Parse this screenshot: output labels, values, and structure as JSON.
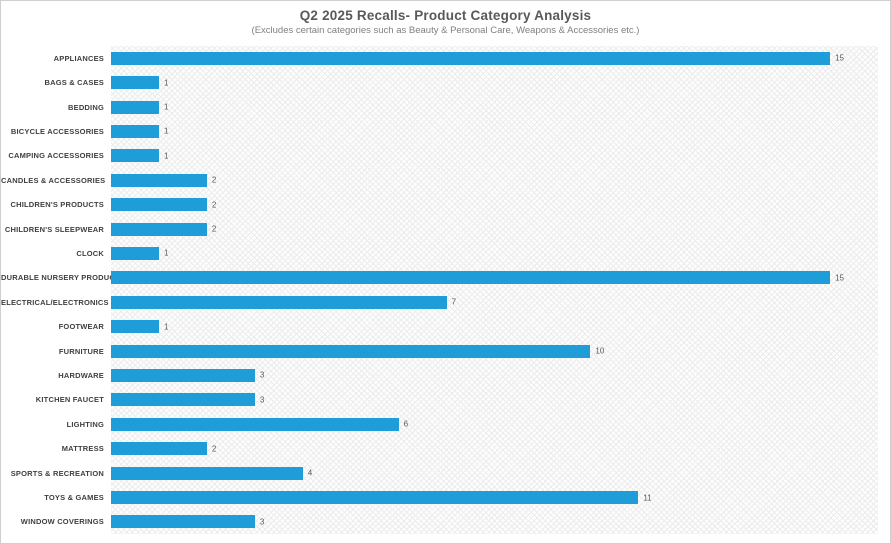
{
  "header": {
    "title": "Q2 2025 Recalls- Product Category Analysis",
    "subtitle": "(Excludes certain categories such as Beauty & Personal Care, Weapons & Accessories etc.)"
  },
  "chart_data": {
    "type": "bar",
    "orientation": "horizontal",
    "title": "Q2 2025 Recalls- Product Category Analysis",
    "subtitle": "(Excludes certain categories such as Beauty & Personal Care, Weapons & Accessories etc.)",
    "categories": [
      "APPLIANCES",
      "BAGS & CASES",
      "BEDDING",
      "BICYCLE ACCESSORIES",
      "CAMPING ACCESSORIES",
      "CANDLES & ACCESSORIES",
      "CHILDREN'S PRODUCTS",
      "CHILDREN'S SLEEPWEAR",
      "CLOCK",
      "DURABLE NURSERY PRODUCT",
      "ELECTRICAL/ELECTRONICS",
      "FOOTWEAR",
      "FURNITURE",
      "HARDWARE",
      "KITCHEN FAUCET",
      "LIGHTING",
      "MATTRESS",
      "SPORTS & RECREATION",
      "TOYS & GAMES",
      "WINDOW COVERINGS"
    ],
    "values": [
      15,
      1,
      1,
      1,
      1,
      2,
      2,
      2,
      1,
      15,
      7,
      1,
      10,
      3,
      3,
      6,
      2,
      4,
      11,
      3
    ],
    "xlim": [
      0,
      16
    ],
    "grid": false,
    "legend": false,
    "data_labels": true,
    "bar_color": "#1e9dd9",
    "value_label_color": "#595959",
    "category_label_color": "#404040",
    "title_color": "#595959",
    "subtitle_color": "#7f7f7f",
    "plot_background": "hatched"
  }
}
